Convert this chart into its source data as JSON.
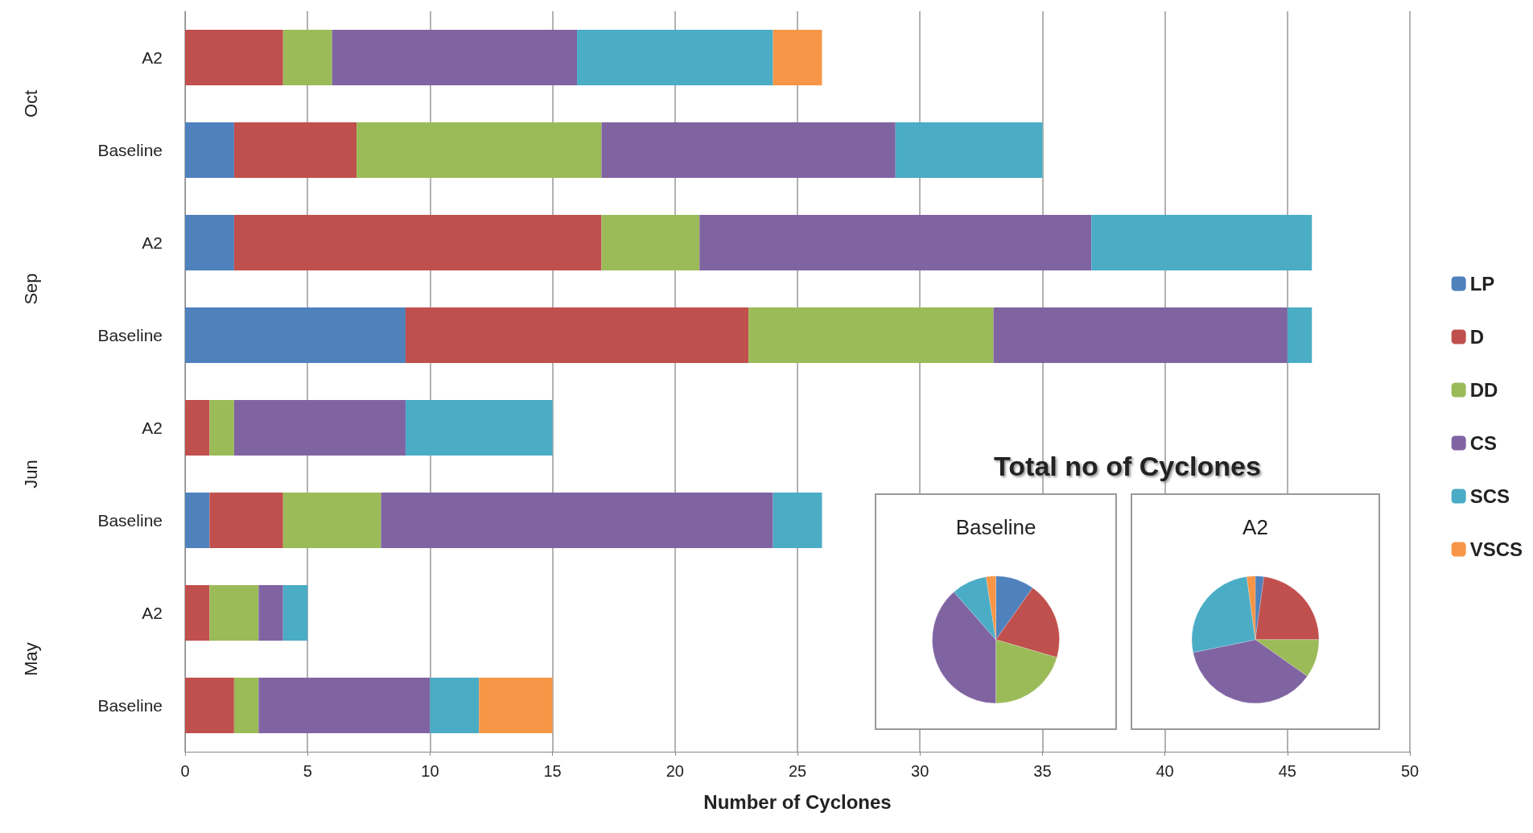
{
  "chart_data": [
    {
      "type": "bar",
      "orientation": "horizontal",
      "stacked": true,
      "categories": [
        "A2",
        "Baseline",
        "A2",
        "Baseline",
        "A2",
        "Baseline",
        "A2",
        "Baseline"
      ],
      "annotations": [
        "Oct",
        "Sep",
        "Jun",
        "May"
      ],
      "xlabel": "Number of Cyclones",
      "xlim": [
        0,
        50
      ],
      "xticks": [
        0,
        5,
        10,
        15,
        20,
        25,
        30,
        35,
        40,
        45,
        50
      ],
      "grid": "x",
      "legend": "right",
      "series": [
        {
          "name": "LP",
          "color": "#4f81bd",
          "values": [
            0,
            2,
            2,
            9,
            0,
            1,
            0,
            0
          ]
        },
        {
          "name": "D",
          "color": "#c0504d",
          "values": [
            4,
            5,
            15,
            14,
            1,
            3,
            1,
            2
          ]
        },
        {
          "name": "DD",
          "color": "#9bbb59",
          "values": [
            2,
            10,
            4,
            10,
            1,
            4,
            2,
            1
          ]
        },
        {
          "name": "CS",
          "color": "#8064a2",
          "values": [
            10,
            12,
            16,
            12,
            7,
            16,
            1,
            7
          ]
        },
        {
          "name": "SCS",
          "color": "#4bacc6",
          "values": [
            8,
            6,
            9,
            1,
            6,
            2,
            1,
            2
          ]
        },
        {
          "name": "VSCS",
          "color": "#f79646",
          "values": [
            2,
            0,
            0,
            0,
            0,
            0,
            0,
            3
          ]
        }
      ]
    },
    {
      "type": "pie",
      "title": "Baseline",
      "annotations": [
        "Total no of Cyclones"
      ],
      "categories": [
        null,
        null,
        null,
        null,
        null,
        null
      ],
      "values": [
        9.84,
        19.67,
        20.49,
        38.52,
        9.02,
        2.46
      ],
      "colors": [
        "#4f81bd",
        "#c0504d",
        "#9bbb59",
        "#8064a2",
        "#4bacc6",
        "#f79646"
      ]
    },
    {
      "type": "pie",
      "title": "A2",
      "categories": [
        null,
        null,
        null,
        null,
        null,
        null
      ],
      "values": [
        2.17,
        22.83,
        9.78,
        36.96,
        26.09,
        2.17
      ],
      "colors": [
        "#4f81bd",
        "#c0504d",
        "#9bbb59",
        "#8064a2",
        "#4bacc6",
        "#f79646"
      ]
    }
  ]
}
